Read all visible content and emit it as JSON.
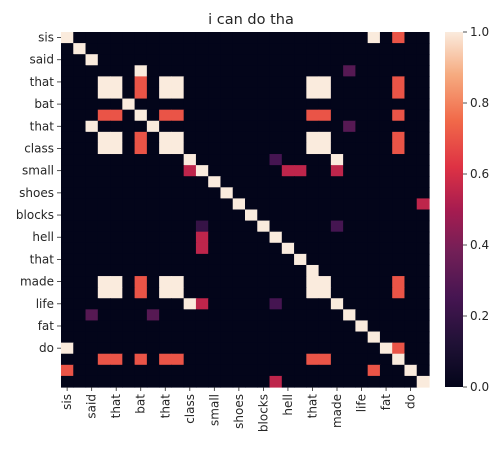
{
  "chart_data": {
    "type": "heatmap",
    "title": "i can do tha",
    "labels": [
      "sis",
      "said",
      "that",
      "bat",
      "that",
      "class",
      "small",
      "shoes",
      "blocks",
      "hell",
      "that",
      "made",
      "life",
      "fat",
      "do"
    ],
    "ticks_shown": [
      0,
      2,
      4,
      6,
      8,
      10,
      12,
      14,
      16,
      18,
      20,
      22,
      24,
      26,
      28
    ],
    "matrix": [
      [
        1,
        0,
        0,
        0,
        0,
        0,
        0,
        0,
        0,
        0,
        0,
        0,
        0,
        0,
        0,
        0,
        0,
        0,
        0,
        0,
        0,
        0,
        0,
        0,
        0,
        1,
        0,
        0.7,
        0,
        0
      ],
      [
        0,
        1,
        0,
        0,
        0,
        0,
        0,
        0,
        0,
        0,
        0,
        0,
        0,
        0,
        0,
        0,
        0,
        0,
        0,
        0,
        0,
        0,
        0,
        0,
        0,
        0,
        0,
        0,
        0,
        0
      ],
      [
        0,
        0,
        1,
        0,
        0,
        0,
        0,
        0,
        0,
        0,
        0,
        0,
        0,
        0,
        0,
        0,
        0,
        0,
        0,
        0,
        0,
        0,
        0,
        0,
        0,
        0,
        0,
        0,
        0,
        0
      ],
      [
        0,
        0,
        0,
        0,
        0,
        0,
        1,
        0,
        0,
        0,
        0,
        0,
        0,
        0,
        0,
        0,
        0,
        0,
        0,
        0,
        0,
        0,
        0,
        0.3,
        0,
        0,
        0,
        0,
        0,
        0
      ],
      [
        0,
        0,
        0,
        1,
        1,
        0,
        0.7,
        0,
        1,
        1,
        0,
        0,
        0,
        0,
        0,
        0,
        0,
        0,
        0,
        0,
        1,
        1,
        0,
        0,
        0,
        0,
        0,
        0.7,
        0,
        0
      ],
      [
        0,
        0,
        0,
        1,
        1,
        0,
        0.7,
        0,
        1,
        1,
        0,
        0,
        0,
        0,
        0,
        0,
        0,
        0,
        0,
        0,
        1,
        1,
        0,
        0,
        0,
        0,
        0,
        0.7,
        0,
        0
      ],
      [
        0,
        0,
        0,
        0,
        0,
        1,
        0,
        0,
        0,
        0,
        0,
        0,
        0,
        0,
        0,
        0,
        0,
        0,
        0,
        0,
        0,
        0,
        0,
        0,
        0,
        0,
        0,
        0,
        0,
        0
      ],
      [
        0,
        0,
        0,
        0.7,
        0.7,
        0,
        1,
        0,
        0.7,
        0.7,
        0,
        0,
        0,
        0,
        0,
        0,
        0,
        0,
        0,
        0,
        0.7,
        0.7,
        0,
        0,
        0,
        0,
        0,
        0.7,
        0,
        0
      ],
      [
        0,
        0,
        1,
        0,
        0,
        0,
        0,
        1,
        0,
        0,
        0,
        0,
        0,
        0,
        0,
        0,
        0,
        0,
        0,
        0,
        0,
        0,
        0,
        0.3,
        0,
        0,
        0,
        0,
        0,
        0
      ],
      [
        0,
        0,
        0,
        1,
        1,
        0,
        0.7,
        0,
        1,
        1,
        0,
        0,
        0,
        0,
        0,
        0,
        0,
        0,
        0,
        0,
        1,
        1,
        0,
        0,
        0,
        0,
        0,
        0.7,
        0,
        0
      ],
      [
        0,
        0,
        0,
        1,
        1,
        0,
        0.7,
        0,
        1,
        1,
        0,
        0,
        0,
        0,
        0,
        0,
        0,
        0,
        0,
        0,
        1,
        1,
        0,
        0,
        0,
        0,
        0,
        0.7,
        0,
        0
      ],
      [
        0,
        0,
        0,
        0,
        0,
        0,
        0,
        0,
        0,
        0,
        1,
        0,
        0,
        0,
        0,
        0,
        0,
        0.25,
        0,
        0,
        0,
        0,
        1,
        0,
        0,
        0,
        0,
        0,
        0,
        0
      ],
      [
        0,
        0,
        0,
        0,
        0,
        0,
        0,
        0,
        0,
        0,
        0.55,
        1,
        0,
        0,
        0,
        0,
        0,
        0,
        0.55,
        0.55,
        0,
        0,
        0.55,
        0,
        0,
        0,
        0,
        0,
        0,
        0
      ],
      [
        0,
        0,
        0,
        0,
        0,
        0,
        0,
        0,
        0,
        0,
        0,
        0,
        1,
        0,
        0,
        0,
        0,
        0,
        0,
        0,
        0,
        0,
        0,
        0,
        0,
        0,
        0,
        0,
        0,
        0
      ],
      [
        0,
        0,
        0,
        0,
        0,
        0,
        0,
        0,
        0,
        0,
        0,
        0,
        0,
        1,
        0,
        0,
        0,
        0,
        0,
        0,
        0,
        0,
        0,
        0,
        0,
        0,
        0,
        0,
        0,
        0
      ],
      [
        0,
        0,
        0,
        0,
        0,
        0,
        0,
        0,
        0,
        0,
        0,
        0,
        0,
        0,
        1,
        0,
        0,
        0,
        0,
        0,
        0,
        0,
        0,
        0,
        0,
        0,
        0,
        0,
        0,
        0.55
      ],
      [
        0,
        0,
        0,
        0,
        0,
        0,
        0,
        0,
        0,
        0,
        0,
        0,
        0,
        0,
        0,
        1,
        0,
        0,
        0,
        0,
        0,
        0,
        0,
        0,
        0,
        0,
        0,
        0,
        0,
        0
      ],
      [
        0,
        0,
        0,
        0,
        0,
        0,
        0,
        0,
        0,
        0,
        0,
        0.2,
        0,
        0,
        0,
        0,
        1,
        0,
        0,
        0,
        0,
        0,
        0.25,
        0,
        0,
        0,
        0,
        0,
        0,
        0
      ],
      [
        0,
        0,
        0,
        0,
        0,
        0,
        0,
        0,
        0,
        0,
        0,
        0.55,
        0,
        0,
        0,
        0,
        0,
        1,
        0,
        0,
        0,
        0,
        0,
        0,
        0,
        0,
        0,
        0,
        0,
        0
      ],
      [
        0,
        0,
        0,
        0,
        0,
        0,
        0,
        0,
        0,
        0,
        0,
        0.55,
        0,
        0,
        0,
        0,
        0,
        0,
        1,
        0,
        0,
        0,
        0,
        0,
        0,
        0,
        0,
        0,
        0,
        0
      ],
      [
        0,
        0,
        0,
        0,
        0,
        0,
        0,
        0,
        0,
        0,
        0,
        0,
        0,
        0,
        0,
        0,
        0,
        0,
        0,
        1,
        0,
        0,
        0,
        0,
        0,
        0,
        0,
        0,
        0,
        0
      ],
      [
        0,
        0,
        0,
        0,
        0,
        0,
        0,
        0,
        0,
        0,
        0,
        0,
        0,
        0,
        0,
        0,
        0,
        0,
        0,
        0,
        1,
        0,
        0,
        0,
        0,
        0,
        0,
        0,
        0,
        0
      ],
      [
        0,
        0,
        0,
        1,
        1,
        0,
        0.7,
        0,
        1,
        1,
        0,
        0,
        0,
        0,
        0,
        0,
        0,
        0,
        0,
        0,
        1,
        1,
        0,
        0,
        0,
        0,
        0,
        0.7,
        0,
        0
      ],
      [
        0,
        0,
        0,
        1,
        1,
        0,
        0.7,
        0,
        1,
        1,
        0,
        0,
        0,
        0,
        0,
        0,
        0,
        0,
        0,
        0,
        1,
        1,
        0,
        0,
        0,
        0,
        0,
        0.7,
        0,
        0
      ],
      [
        0,
        0,
        0,
        0,
        0,
        0,
        0,
        0,
        0,
        0,
        1,
        0.55,
        0,
        0,
        0,
        0,
        0,
        0.25,
        0,
        0,
        0,
        0,
        1,
        0,
        0,
        0,
        0,
        0,
        0,
        0
      ],
      [
        0,
        0,
        0.3,
        0,
        0,
        0,
        0,
        0.3,
        0,
        0,
        0,
        0,
        0,
        0,
        0,
        0,
        0,
        0,
        0,
        0,
        0,
        0,
        0,
        1,
        0,
        0,
        0,
        0,
        0,
        0
      ],
      [
        0,
        0,
        0,
        0,
        0,
        0,
        0,
        0,
        0,
        0,
        0,
        0,
        0,
        0,
        0,
        0,
        0,
        0,
        0,
        0,
        0,
        0,
        0,
        0,
        1,
        0,
        0,
        0,
        0,
        0
      ],
      [
        0,
        0,
        0,
        0,
        0,
        0,
        0,
        0,
        0,
        0,
        0,
        0,
        0,
        0,
        0,
        0,
        0,
        0,
        0,
        0,
        0,
        0,
        0,
        0,
        0,
        1,
        0,
        0,
        0,
        0
      ],
      [
        1,
        0,
        0,
        0,
        0,
        0,
        0,
        0,
        0,
        0,
        0,
        0,
        0,
        0,
        0,
        0,
        0,
        0,
        0,
        0,
        0,
        0,
        0,
        0,
        0,
        0,
        1,
        0.7,
        0,
        0
      ],
      [
        0,
        0,
        0,
        0.7,
        0.7,
        0,
        0.7,
        0,
        0.7,
        0.7,
        0,
        0,
        0,
        0,
        0,
        0,
        0,
        0,
        0,
        0,
        0.7,
        0.7,
        0,
        0,
        0,
        0,
        0,
        1,
        0,
        0
      ],
      [
        0.7,
        0,
        0,
        0,
        0,
        0,
        0,
        0,
        0,
        0,
        0,
        0,
        0,
        0,
        0,
        0,
        0,
        0,
        0,
        0,
        0,
        0,
        0,
        0,
        0,
        0.7,
        0,
        0,
        1,
        0
      ],
      [
        0,
        0,
        0,
        0,
        0,
        0,
        0,
        0,
        0,
        0,
        0,
        0,
        0,
        0,
        0,
        0,
        0,
        0.55,
        0,
        0,
        0,
        0,
        0,
        0,
        0,
        0,
        0,
        0,
        0,
        1
      ]
    ],
    "colorbar": {
      "min": 0.0,
      "max": 1.0,
      "ticks": [
        "0.0",
        "0.2",
        "0.4",
        "0.6",
        "0.8",
        "1.0"
      ]
    },
    "colormap": "rocket"
  }
}
